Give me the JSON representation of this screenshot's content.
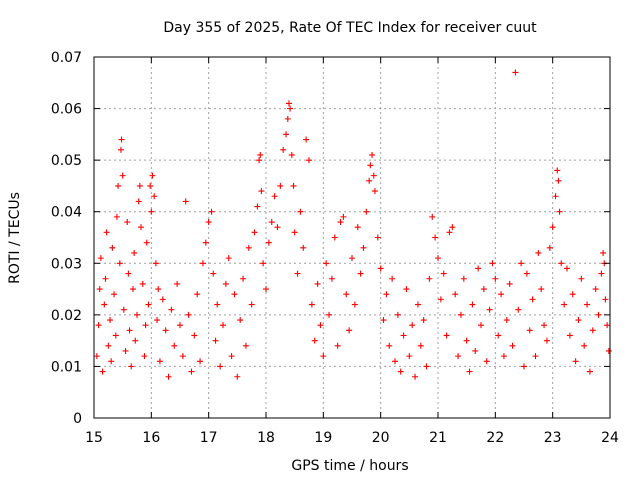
{
  "chart_data": {
    "type": "scatter",
    "title": "Day 355 of 2025, Rate Of TEC Index for receiver cuut",
    "xlabel": "GPS time / hours",
    "ylabel": "ROTI / TECUs",
    "xlim": [
      15,
      24
    ],
    "ylim": [
      0,
      0.07
    ],
    "x_ticks": [
      "15",
      "16",
      "17",
      "18",
      "19",
      "20",
      "21",
      "22",
      "23",
      "24"
    ],
    "y_ticks": [
      "0",
      "0.01",
      "0.02",
      "0.03",
      "0.04",
      "0.05",
      "0.06",
      "0.07"
    ],
    "grid": true,
    "marker": "+",
    "color": "#ff0000",
    "series": [
      {
        "points": [
          [
            15.05,
            0.012
          ],
          [
            15.08,
            0.018
          ],
          [
            15.1,
            0.025
          ],
          [
            15.12,
            0.031
          ],
          [
            15.15,
            0.009
          ],
          [
            15.18,
            0.022
          ],
          [
            15.2,
            0.027
          ],
          [
            15.22,
            0.036
          ],
          [
            15.25,
            0.014
          ],
          [
            15.28,
            0.019
          ],
          [
            15.3,
            0.011
          ],
          [
            15.32,
            0.033
          ],
          [
            15.35,
            0.024
          ],
          [
            15.38,
            0.016
          ],
          [
            15.4,
            0.039
          ],
          [
            15.42,
            0.045
          ],
          [
            15.45,
            0.03
          ],
          [
            15.47,
            0.052
          ],
          [
            15.48,
            0.054
          ],
          [
            15.5,
            0.047
          ],
          [
            15.52,
            0.021
          ],
          [
            15.55,
            0.013
          ],
          [
            15.58,
            0.038
          ],
          [
            15.6,
            0.028
          ],
          [
            15.62,
            0.017
          ],
          [
            15.65,
            0.01
          ],
          [
            15.68,
            0.025
          ],
          [
            15.7,
            0.032
          ],
          [
            15.72,
            0.015
          ],
          [
            15.75,
            0.02
          ],
          [
            15.78,
            0.042
          ],
          [
            15.8,
            0.045
          ],
          [
            15.82,
            0.037
          ],
          [
            15.85,
            0.026
          ],
          [
            15.88,
            0.012
          ],
          [
            15.9,
            0.018
          ],
          [
            15.92,
            0.034
          ],
          [
            15.95,
            0.022
          ],
          [
            15.98,
            0.045
          ],
          [
            16.0,
            0.04
          ],
          [
            16.02,
            0.047
          ],
          [
            16.05,
            0.043
          ],
          [
            16.08,
            0.03
          ],
          [
            16.1,
            0.019
          ],
          [
            16.12,
            0.025
          ],
          [
            16.15,
            0.011
          ],
          [
            16.2,
            0.023
          ],
          [
            16.25,
            0.017
          ],
          [
            16.3,
            0.008
          ],
          [
            16.35,
            0.021
          ],
          [
            16.4,
            0.014
          ],
          [
            16.45,
            0.026
          ],
          [
            16.5,
            0.018
          ],
          [
            16.55,
            0.012
          ],
          [
            16.6,
            0.042
          ],
          [
            16.65,
            0.02
          ],
          [
            16.7,
            0.009
          ],
          [
            16.75,
            0.016
          ],
          [
            16.8,
            0.024
          ],
          [
            16.85,
            0.011
          ],
          [
            16.9,
            0.03
          ],
          [
            16.95,
            0.034
          ],
          [
            17.0,
            0.038
          ],
          [
            17.05,
            0.04
          ],
          [
            17.08,
            0.028
          ],
          [
            17.12,
            0.015
          ],
          [
            17.15,
            0.022
          ],
          [
            17.2,
            0.01
          ],
          [
            17.25,
            0.018
          ],
          [
            17.3,
            0.026
          ],
          [
            17.35,
            0.031
          ],
          [
            17.4,
            0.012
          ],
          [
            17.45,
            0.024
          ],
          [
            17.5,
            0.008
          ],
          [
            17.55,
            0.019
          ],
          [
            17.6,
            0.027
          ],
          [
            17.65,
            0.014
          ],
          [
            17.7,
            0.033
          ],
          [
            17.75,
            0.022
          ],
          [
            17.8,
            0.036
          ],
          [
            17.85,
            0.041
          ],
          [
            17.88,
            0.05
          ],
          [
            17.9,
            0.051
          ],
          [
            17.92,
            0.044
          ],
          [
            17.95,
            0.03
          ],
          [
            18.0,
            0.025
          ],
          [
            18.05,
            0.034
          ],
          [
            18.1,
            0.038
          ],
          [
            18.15,
            0.043
          ],
          [
            18.2,
            0.037
          ],
          [
            18.25,
            0.045
          ],
          [
            18.3,
            0.052
          ],
          [
            18.35,
            0.055
          ],
          [
            18.38,
            0.058
          ],
          [
            18.4,
            0.061
          ],
          [
            18.42,
            0.06
          ],
          [
            18.45,
            0.051
          ],
          [
            18.48,
            0.045
          ],
          [
            18.5,
            0.036
          ],
          [
            18.55,
            0.028
          ],
          [
            18.6,
            0.04
          ],
          [
            18.65,
            0.033
          ],
          [
            18.7,
            0.054
          ],
          [
            18.75,
            0.05
          ],
          [
            18.8,
            0.022
          ],
          [
            18.85,
            0.015
          ],
          [
            18.9,
            0.026
          ],
          [
            18.95,
            0.018
          ],
          [
            19.0,
            0.012
          ],
          [
            19.05,
            0.03
          ],
          [
            19.1,
            0.02
          ],
          [
            19.15,
            0.027
          ],
          [
            19.2,
            0.035
          ],
          [
            19.25,
            0.014
          ],
          [
            19.3,
            0.038
          ],
          [
            19.35,
            0.039
          ],
          [
            19.4,
            0.024
          ],
          [
            19.45,
            0.017
          ],
          [
            19.5,
            0.031
          ],
          [
            19.55,
            0.022
          ],
          [
            19.6,
            0.037
          ],
          [
            19.65,
            0.028
          ],
          [
            19.7,
            0.033
          ],
          [
            19.75,
            0.04
          ],
          [
            19.8,
            0.046
          ],
          [
            19.82,
            0.049
          ],
          [
            19.85,
            0.051
          ],
          [
            19.88,
            0.047
          ],
          [
            19.9,
            0.044
          ],
          [
            19.95,
            0.035
          ],
          [
            20.0,
            0.029
          ],
          [
            20.05,
            0.019
          ],
          [
            20.1,
            0.024
          ],
          [
            20.15,
            0.014
          ],
          [
            20.2,
            0.027
          ],
          [
            20.25,
            0.011
          ],
          [
            20.3,
            0.02
          ],
          [
            20.35,
            0.009
          ],
          [
            20.4,
            0.016
          ],
          [
            20.45,
            0.025
          ],
          [
            20.5,
            0.012
          ],
          [
            20.55,
            0.018
          ],
          [
            20.6,
            0.008
          ],
          [
            20.65,
            0.022
          ],
          [
            20.7,
            0.014
          ],
          [
            20.75,
            0.019
          ],
          [
            20.8,
            0.01
          ],
          [
            20.85,
            0.027
          ],
          [
            20.9,
            0.039
          ],
          [
            20.95,
            0.035
          ],
          [
            21.0,
            0.031
          ],
          [
            21.05,
            0.023
          ],
          [
            21.1,
            0.028
          ],
          [
            21.15,
            0.016
          ],
          [
            21.2,
            0.036
          ],
          [
            21.25,
            0.037
          ],
          [
            21.3,
            0.024
          ],
          [
            21.35,
            0.012
          ],
          [
            21.4,
            0.02
          ],
          [
            21.45,
            0.027
          ],
          [
            21.5,
            0.015
          ],
          [
            21.55,
            0.009
          ],
          [
            21.6,
            0.022
          ],
          [
            21.65,
            0.013
          ],
          [
            21.7,
            0.029
          ],
          [
            21.75,
            0.018
          ],
          [
            21.8,
            0.025
          ],
          [
            21.85,
            0.011
          ],
          [
            21.9,
            0.021
          ],
          [
            21.95,
            0.03
          ],
          [
            22.0,
            0.027
          ],
          [
            22.05,
            0.016
          ],
          [
            22.1,
            0.024
          ],
          [
            22.15,
            0.012
          ],
          [
            22.2,
            0.019
          ],
          [
            22.25,
            0.026
          ],
          [
            22.3,
            0.014
          ],
          [
            22.35,
            0.067
          ],
          [
            22.4,
            0.021
          ],
          [
            22.45,
            0.03
          ],
          [
            22.5,
            0.01
          ],
          [
            22.55,
            0.028
          ],
          [
            22.6,
            0.017
          ],
          [
            22.65,
            0.023
          ],
          [
            22.7,
            0.012
          ],
          [
            22.75,
            0.032
          ],
          [
            22.8,
            0.025
          ],
          [
            22.85,
            0.018
          ],
          [
            22.9,
            0.015
          ],
          [
            22.95,
            0.033
          ],
          [
            23.0,
            0.037
          ],
          [
            23.05,
            0.043
          ],
          [
            23.08,
            0.048
          ],
          [
            23.1,
            0.046
          ],
          [
            23.12,
            0.04
          ],
          [
            23.15,
            0.03
          ],
          [
            23.2,
            0.022
          ],
          [
            23.25,
            0.029
          ],
          [
            23.3,
            0.016
          ],
          [
            23.35,
            0.024
          ],
          [
            23.4,
            0.011
          ],
          [
            23.45,
            0.019
          ],
          [
            23.5,
            0.027
          ],
          [
            23.55,
            0.014
          ],
          [
            23.6,
            0.022
          ],
          [
            23.65,
            0.009
          ],
          [
            23.7,
            0.017
          ],
          [
            23.75,
            0.025
          ],
          [
            23.8,
            0.02
          ],
          [
            23.85,
            0.028
          ],
          [
            23.88,
            0.032
          ],
          [
            23.9,
            0.03
          ],
          [
            23.92,
            0.023
          ],
          [
            23.95,
            0.018
          ],
          [
            23.98,
            0.013
          ]
        ]
      }
    ]
  }
}
